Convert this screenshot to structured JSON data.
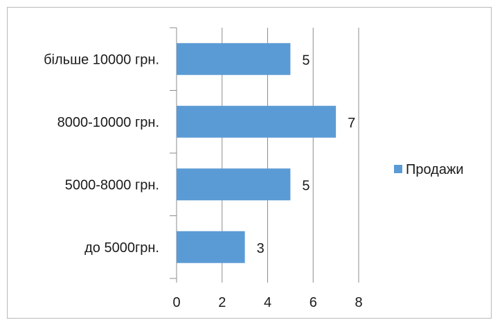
{
  "chart_data": {
    "type": "bar",
    "orientation": "horizontal",
    "categories": [
      "до 5000грн.",
      "5000-8000 грн.",
      "8000-10000 грн.",
      "більше 10000 грн."
    ],
    "series": [
      {
        "name": "Продажи",
        "values": [
          3,
          5,
          7,
          5
        ],
        "color": "#5b9bd5"
      }
    ],
    "data_labels": [
      "3",
      "5",
      "7",
      "5"
    ],
    "xlim": [
      0,
      8
    ],
    "x_ticks": [
      0,
      2,
      4,
      6,
      8
    ],
    "grid": true,
    "legend": "right",
    "title": "",
    "xlabel": "",
    "ylabel": ""
  }
}
